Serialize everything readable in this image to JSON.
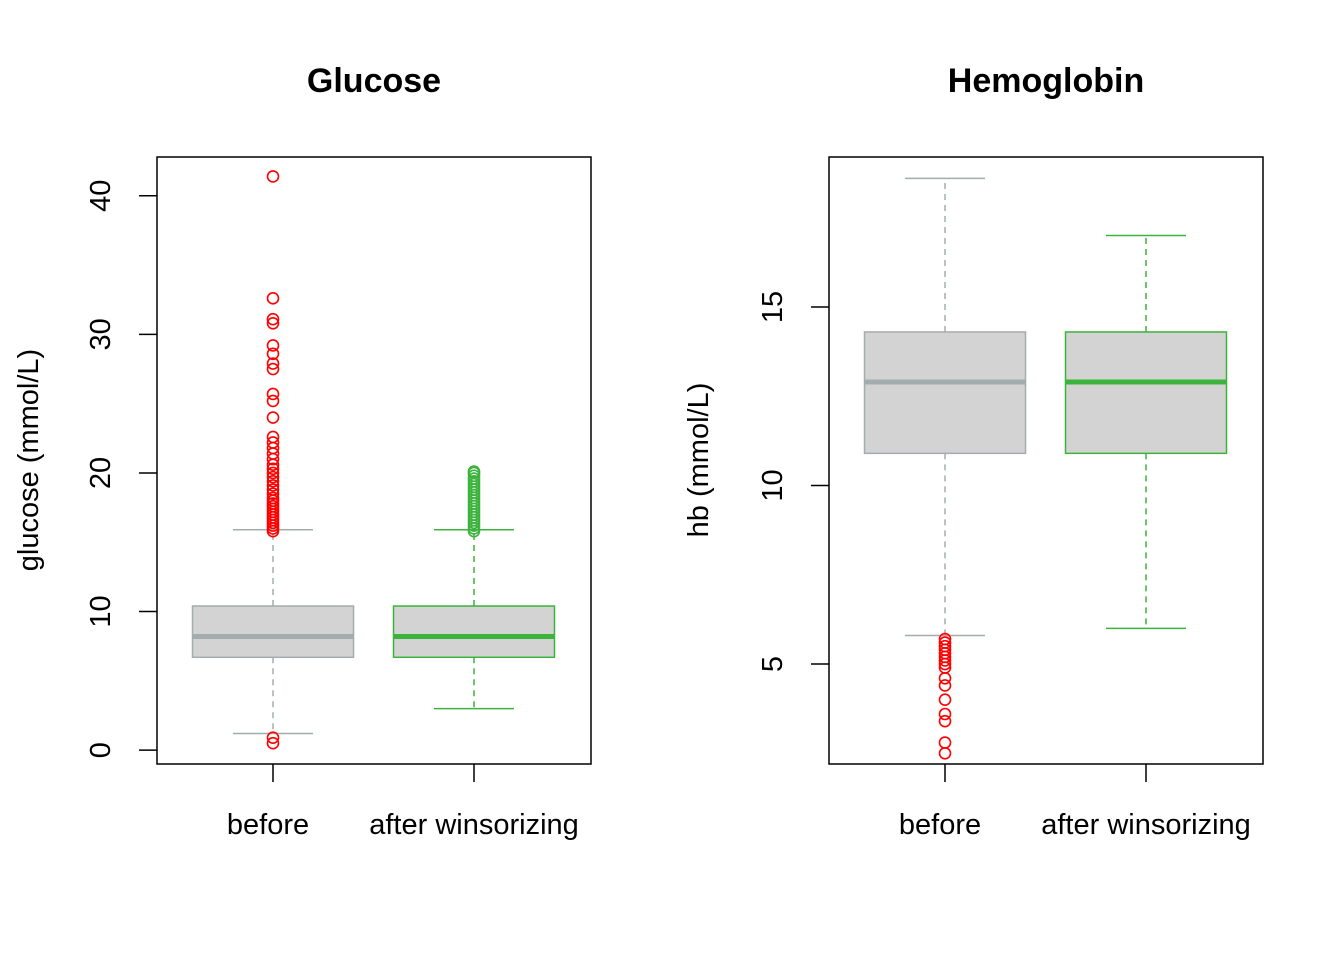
{
  "chart_data": [
    {
      "type": "boxplot",
      "title": "Glucose",
      "ylabel": "glucose (mmol/L)",
      "ylim": [
        -1.0,
        42.8
      ],
      "yticks": [
        0,
        10,
        20,
        30,
        40
      ],
      "categories": [
        "before",
        "after winsorizing"
      ],
      "boxes": [
        {
          "name": "before",
          "min": 1.2,
          "q1": 6.7,
          "median": 8.2,
          "q3": 10.4,
          "max": 15.9,
          "outliers": [
            0.5,
            0.9,
            15.8,
            16.0,
            16.2,
            16.4,
            16.6,
            16.8,
            17.0,
            17.2,
            17.4,
            17.6,
            17.8,
            18.0,
            18.2,
            18.5,
            18.8,
            19.1,
            19.4,
            19.7,
            20.0,
            20.3,
            20.6,
            21.0,
            21.4,
            21.8,
            22.2,
            22.6,
            24.0,
            25.2,
            25.7,
            27.5,
            27.9,
            28.6,
            29.2,
            30.8,
            31.1,
            32.6,
            41.4
          ],
          "box_color": "#a4adad",
          "fill": "#d3d3d3",
          "outlier_color": "#ff0000"
        },
        {
          "name": "after winsorizing",
          "min": 3.0,
          "q1": 6.7,
          "median": 8.2,
          "q3": 10.4,
          "max": 15.9,
          "outliers": [
            15.8,
            16.0,
            16.2,
            16.4,
            16.6,
            16.8,
            17.0,
            17.2,
            17.4,
            17.6,
            17.8,
            18.0,
            18.2,
            18.4,
            18.6,
            18.8,
            19.0,
            19.2,
            19.4,
            19.6,
            19.8,
            20.0,
            20.1
          ],
          "box_color": "#3cb33c",
          "fill": "#d3d3d3",
          "outlier_color": "#3cb33c"
        }
      ]
    },
    {
      "type": "boxplot",
      "title": "Hemoglobin",
      "ylabel": "hb (mmol/L)",
      "ylim": [
        2.2,
        19.2
      ],
      "yticks": [
        5,
        10,
        15
      ],
      "categories": [
        "before",
        "after winsorizing"
      ],
      "boxes": [
        {
          "name": "before",
          "min": 5.8,
          "q1": 10.9,
          "median": 12.9,
          "q3": 14.3,
          "max": 18.6,
          "outliers": [
            2.5,
            2.8,
            3.4,
            3.6,
            4.0,
            4.4,
            4.6,
            4.9,
            5.0,
            5.1,
            5.2,
            5.3,
            5.4,
            5.5,
            5.6,
            5.7
          ],
          "box_color": "#a4adad",
          "fill": "#d3d3d3",
          "outlier_color": "#ff0000"
        },
        {
          "name": "after winsorizing",
          "min": 6.0,
          "q1": 10.9,
          "median": 12.9,
          "q3": 14.3,
          "max": 17.0,
          "outliers": [],
          "box_color": "#3cb33c",
          "fill": "#d3d3d3",
          "outlier_color": "#3cb33c"
        }
      ]
    }
  ]
}
